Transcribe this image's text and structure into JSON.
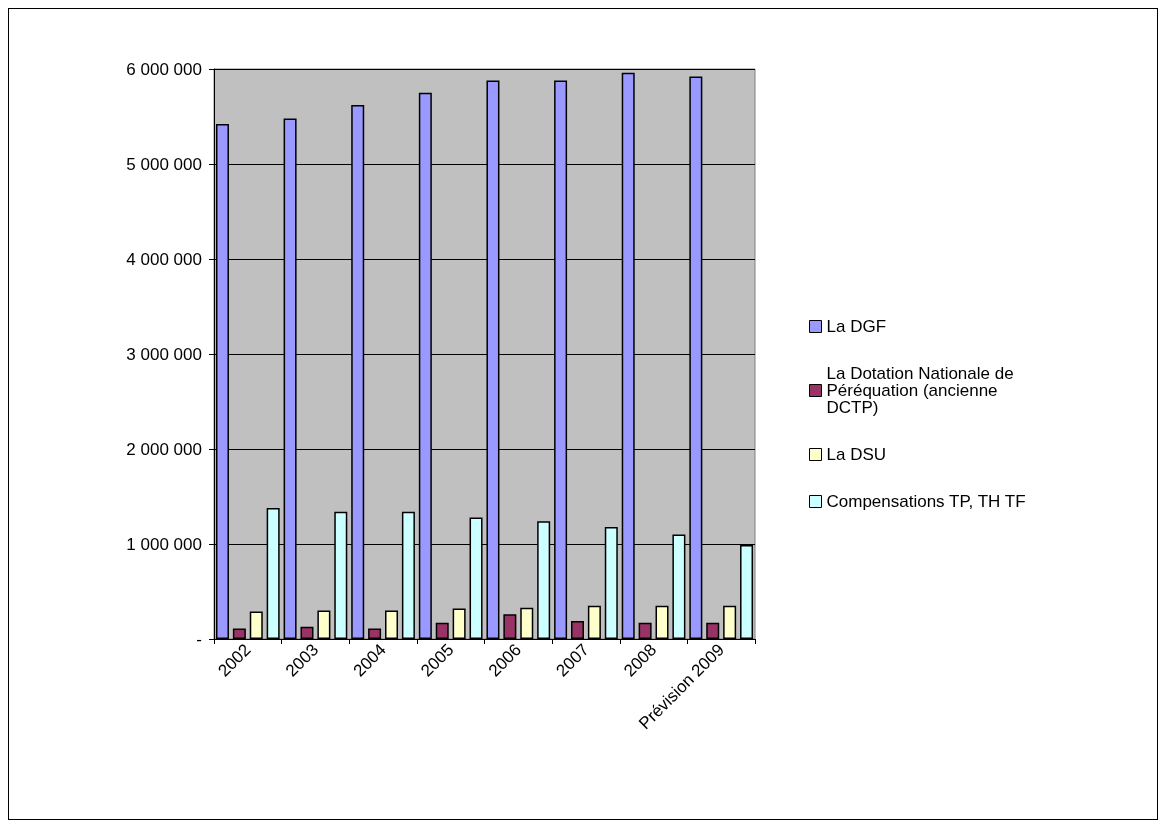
{
  "chart_data": {
    "type": "bar",
    "categories": [
      "2002",
      "2003",
      "2004",
      "2005",
      "2006",
      "2007",
      "2008",
      "Prévision 2009"
    ],
    "series": [
      {
        "name": "La DGF",
        "color": "#9999ff",
        "values": [
          5420000,
          5480000,
          5620000,
          5750000,
          5880000,
          5880000,
          5960000,
          5920000
        ]
      },
      {
        "name": "La Dotation Nationale de Péréquation (ancienne DCTP)",
        "color": "#993366",
        "values": [
          110000,
          130000,
          110000,
          170000,
          260000,
          190000,
          170000,
          170000
        ]
      },
      {
        "name": "La DSU",
        "color": "#ffffcc",
        "values": [
          290000,
          300000,
          300000,
          320000,
          330000,
          350000,
          350000,
          350000
        ]
      },
      {
        "name": "Compensations TP, TH TF",
        "color": "#ccffff",
        "values": [
          1380000,
          1340000,
          1340000,
          1280000,
          1240000,
          1180000,
          1100000,
          990000
        ]
      }
    ],
    "ylim": [
      0,
      6000000
    ],
    "yticks": [
      {
        "value": 0,
        "label": "-"
      },
      {
        "value": 1000000,
        "label": "1 000 000"
      },
      {
        "value": 2000000,
        "label": "2 000 000"
      },
      {
        "value": 3000000,
        "label": "3 000 000"
      },
      {
        "value": 4000000,
        "label": "4 000 000"
      },
      {
        "value": 5000000,
        "label": "5 000 000"
      },
      {
        "value": 6000000,
        "label": "6 000 000"
      }
    ],
    "grid": "y",
    "legend": "right"
  }
}
